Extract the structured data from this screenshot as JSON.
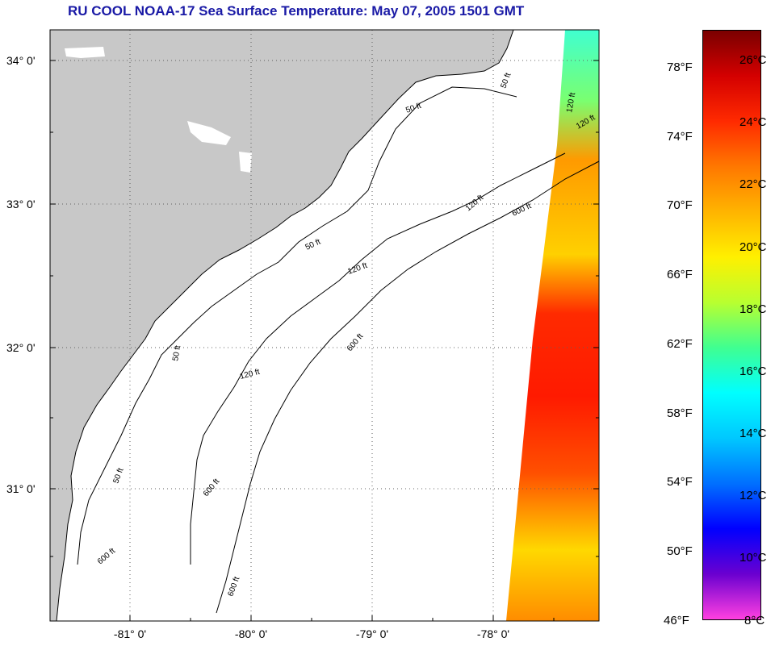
{
  "title": "RU COOL  NOAA-17  Sea Surface Temperature:  May 07, 2005 1501 GMT",
  "map": {
    "lat_labels": [
      "34° 0'",
      "33° 0'",
      "32° 0'",
      "31° 0'"
    ],
    "lon_labels": [
      "-81° 0'",
      "-80° 0'",
      "-79° 0'",
      "-78° 0'"
    ],
    "contour_labels": [
      "50 ft",
      "120 ft",
      "600 ft",
      "50 ft",
      "120 ft",
      "600 ft",
      "50 ft",
      "120 ft",
      "600 ft",
      "50 ft",
      "120 ft",
      "600 ft",
      "50 ft",
      "120 ft",
      "600 ft"
    ],
    "colors": {
      "land": "#c8c8c8",
      "ocean": "#ffffff",
      "grid": "#606060"
    }
  },
  "colorbar": {
    "fahrenheit_labels": [
      "78°F",
      "74°F",
      "70°F",
      "66°F",
      "62°F",
      "58°F",
      "54°F",
      "50°F",
      "46°F"
    ],
    "celsius_labels": [
      "26°C",
      "24°C",
      "22°C",
      "20°C",
      "18°C",
      "16°C",
      "14°C",
      "12°C",
      "10°C",
      "8°C"
    ],
    "colors": [
      "#7a0000",
      "#d40000",
      "#ff2a00",
      "#ff7800",
      "#ffb400",
      "#fff000",
      "#b8ff30",
      "#40ff90",
      "#00ffff",
      "#00c8ff",
      "#0070ff",
      "#0000ff",
      "#6a00d0",
      "#ff40e0"
    ]
  }
}
